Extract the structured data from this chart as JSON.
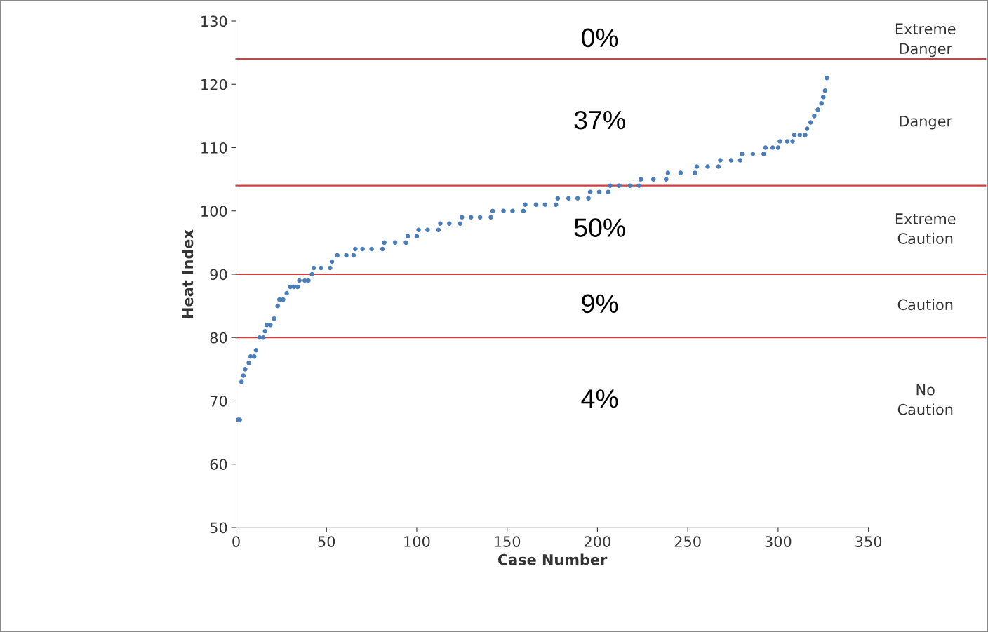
{
  "chart_data": {
    "type": "scatter",
    "xlabel": "Case Number",
    "ylabel": "Heat Index",
    "x": [
      1,
      2,
      3,
      4,
      5,
      7,
      8,
      10,
      11,
      13,
      15,
      16,
      17,
      19,
      21,
      23,
      24,
      26,
      28,
      30,
      32,
      34,
      35,
      38,
      40,
      42,
      43,
      47,
      52,
      53,
      56,
      61,
      65,
      66,
      70,
      75,
      81,
      82,
      88,
      94,
      95,
      100,
      101,
      106,
      112,
      113,
      118,
      124,
      125,
      130,
      135,
      141,
      142,
      148,
      153,
      159,
      160,
      166,
      171,
      177,
      178,
      184,
      189,
      195,
      196,
      201,
      206,
      207,
      212,
      218,
      223,
      224,
      231,
      238,
      239,
      246,
      254,
      255,
      261,
      267,
      268,
      274,
      279,
      280,
      286,
      292,
      293,
      297,
      300,
      301,
      305,
      308,
      309,
      312,
      315,
      316,
      318,
      320,
      322,
      324,
      325,
      326,
      327
    ],
    "values": [
      67,
      67,
      73,
      74,
      75,
      76,
      77,
      77,
      78,
      80,
      80,
      81,
      82,
      82,
      83,
      85,
      86,
      86,
      87,
      88,
      88,
      88,
      89,
      89,
      89,
      90,
      91,
      91,
      91,
      92,
      93,
      93,
      93,
      94,
      94,
      94,
      94,
      95,
      95,
      95,
      96,
      96,
      97,
      97,
      97,
      98,
      98,
      98,
      99,
      99,
      99,
      99,
      100,
      100,
      100,
      100,
      101,
      101,
      101,
      101,
      102,
      102,
      102,
      102,
      103,
      103,
      103,
      104,
      104,
      104,
      104,
      105,
      105,
      105,
      106,
      106,
      106,
      107,
      107,
      107,
      108,
      108,
      108,
      109,
      109,
      109,
      110,
      110,
      110,
      111,
      111,
      111,
      112,
      112,
      112,
      113,
      114,
      115,
      116,
      117,
      118,
      119,
      121
    ],
    "color": "#4a7ebb",
    "marker": "circle",
    "xlim": [
      0,
      350
    ],
    "xticks": [
      0,
      50,
      100,
      150,
      200,
      250,
      300,
      350
    ],
    "ylim": [
      50,
      130
    ],
    "yticks": [
      50,
      60,
      70,
      80,
      90,
      100,
      110,
      120,
      130
    ],
    "grid": false,
    "legend": false,
    "ref_lines": [
      {
        "axis": "y",
        "value": 80,
        "color": "#d0403f"
      },
      {
        "axis": "y",
        "value": 90,
        "color": "#d0403f"
      },
      {
        "axis": "y",
        "value": 104,
        "color": "#d0403f"
      },
      {
        "axis": "y",
        "value": 124,
        "color": "#d0403f"
      }
    ],
    "annotations": [
      "0%",
      "Extreme\nDanger",
      "37%",
      "Danger",
      "50%",
      "Extreme\nCaution",
      "9%",
      "Caution",
      "4%",
      "No\nCaution"
    ]
  }
}
